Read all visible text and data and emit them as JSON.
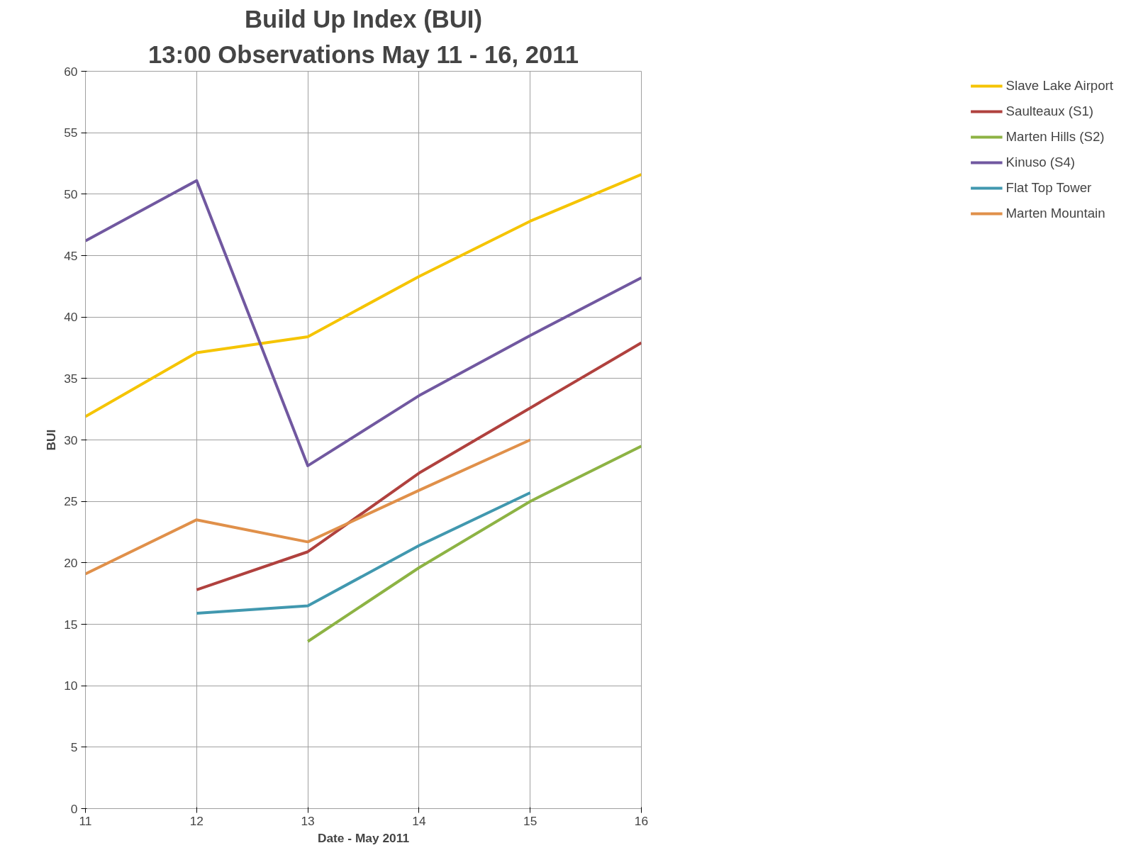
{
  "chart_data": {
    "type": "line",
    "title": "Build Up Index (BUI)",
    "subtitle": "13:00 Observations May 11 - 16, 2011",
    "xlabel": "Date - May 2011",
    "ylabel": "BUI",
    "x": [
      11,
      12,
      13,
      14,
      15,
      16
    ],
    "xlim": [
      11,
      16
    ],
    "xticks": [
      11,
      12,
      13,
      14,
      15,
      16
    ],
    "ylim": [
      0,
      60
    ],
    "yticks": [
      0,
      5,
      10,
      15,
      20,
      25,
      30,
      35,
      40,
      45,
      50,
      55,
      60
    ],
    "grid": true,
    "legend": "right",
    "marker": "none",
    "line_style": "solid",
    "series": [
      {
        "name": "Slave Lake Airport",
        "color": "#f5c400",
        "values": [
          31.9,
          37.1,
          38.4,
          43.3,
          47.8,
          51.6
        ]
      },
      {
        "name": "Saulteaux (S1)",
        "color": "#b0413e",
        "values": [
          null,
          17.8,
          20.9,
          27.3,
          32.6,
          37.9
        ]
      },
      {
        "name": "Marten Hills (S2)",
        "color": "#8db344",
        "values": [
          null,
          null,
          13.6,
          19.6,
          25.0,
          29.5
        ]
      },
      {
        "name": "Kinuso (S4)",
        "color": "#7158a0",
        "values": [
          46.2,
          51.1,
          27.9,
          33.6,
          38.5,
          43.2
        ]
      },
      {
        "name": "Flat Top Tower",
        "color": "#4198af",
        "values": [
          null,
          15.9,
          16.5,
          21.4,
          25.7,
          null
        ]
      },
      {
        "name": "Marten Mountain",
        "color": "#e0904a",
        "values": [
          19.1,
          23.5,
          21.7,
          25.9,
          30.0,
          null
        ]
      }
    ]
  }
}
